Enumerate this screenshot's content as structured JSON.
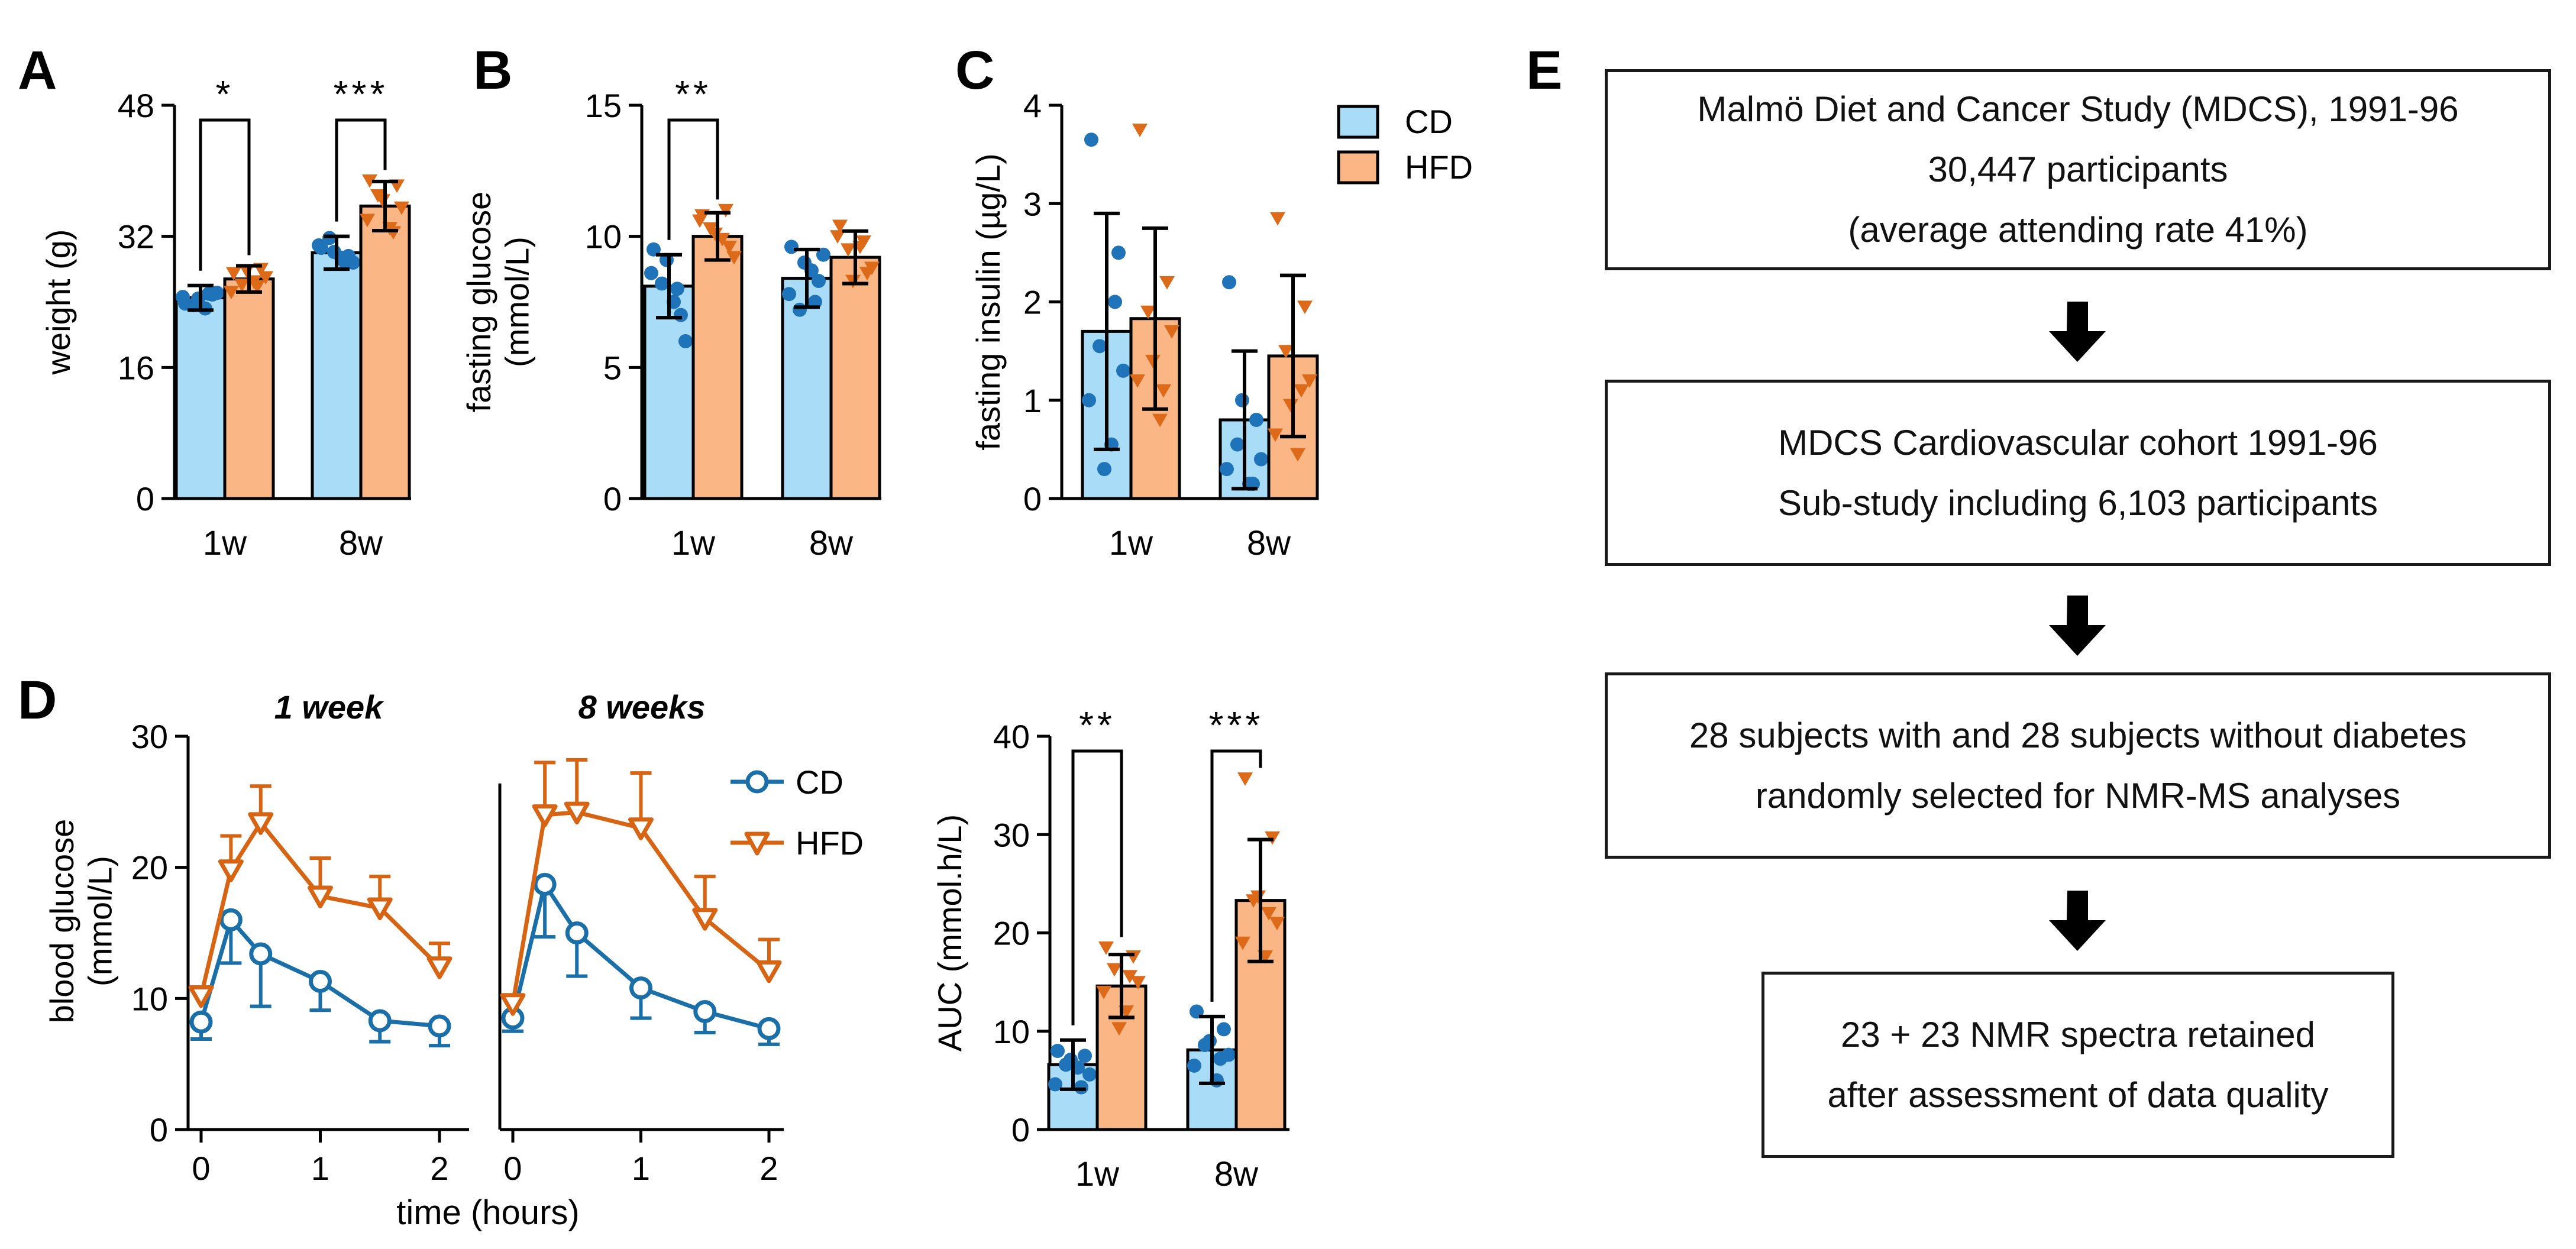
{
  "panel_labels": {
    "a": "A",
    "b": "B",
    "c": "C",
    "d": "D",
    "e": "E"
  },
  "colors": {
    "cd_fill": "#a9dcf7",
    "hfd_fill": "#fab684",
    "cd_line": "#1a6fa8",
    "hfd_line": "#d66412",
    "cd_point": "#1f73b8",
    "hfd_point": "#dd6a18",
    "axis": "#000000"
  },
  "legend": {
    "cd": "CD",
    "hfd": "HFD"
  },
  "chart_data": [
    {
      "id": "A",
      "type": "bar",
      "categories": [
        "1w",
        "8w"
      ],
      "ylabel": "weight (g)",
      "ylim": [
        0,
        48
      ],
      "yticks": [
        "0",
        "16",
        "32",
        "48"
      ],
      "series": [
        {
          "name": "CD",
          "values": [
            24.5,
            30.0
          ],
          "errors": [
            1.5,
            2.0
          ],
          "points": [
            [
              23.8,
              24.9,
              23.6,
              25.1,
              24.6,
              23.2,
              24.4,
              25.0
            ],
            [
              30.6,
              29.6,
              31.8,
              28.8,
              30.9,
              29.4,
              30.1,
              28.9
            ]
          ]
        },
        {
          "name": "HFD",
          "values": [
            26.8,
            35.7
          ],
          "errors": [
            1.6,
            3.0
          ],
          "points": [
            [
              27.5,
              28.0,
              26.1,
              27.0,
              25.2,
              26.5,
              27.8,
              25.9
            ],
            [
              38.8,
              38.2,
              37.0,
              35.5,
              34.0,
              33.0,
              36.4,
              32.5
            ]
          ]
        }
      ],
      "significance": [
        "*",
        "***"
      ]
    },
    {
      "id": "B",
      "type": "bar",
      "categories": [
        "1w",
        "8w"
      ],
      "ylabel": "fasting glucose (mmol/L)",
      "ylim": [
        0,
        15
      ],
      "yticks": [
        "0",
        "5",
        "10",
        "15"
      ],
      "series": [
        {
          "name": "CD",
          "values": [
            8.1,
            8.4
          ],
          "errors": [
            1.2,
            1.1
          ],
          "points": [
            [
              9.5,
              7.0,
              8.2,
              6.0,
              8.6,
              7.5,
              9.1,
              8.0
            ],
            [
              9.6,
              8.3,
              7.2,
              9.3,
              7.8,
              8.7,
              9.0,
              7.5
            ]
          ]
        },
        {
          "name": "HFD",
          "values": [
            10.0,
            9.2
          ],
          "errors": [
            0.9,
            1.0
          ],
          "points": [
            [
              10.8,
              9.6,
              10.3,
              9.2,
              10.6,
              9.9,
              10.1,
              11.0
            ],
            [
              10.4,
              8.6,
              9.5,
              8.8,
              10.0,
              9.6,
              8.3,
              9.8
            ]
          ]
        }
      ],
      "significance": [
        "**",
        ""
      ]
    },
    {
      "id": "C",
      "type": "bar",
      "categories": [
        "1w",
        "8w"
      ],
      "ylabel": "fasting insulin (µg/L)",
      "ylim": [
        0,
        4
      ],
      "yticks": [
        "0",
        "1",
        "2",
        "3",
        "4"
      ],
      "series": [
        {
          "name": "CD",
          "values": [
            1.7,
            0.8
          ],
          "errors": [
            1.2,
            0.7
          ],
          "points": [
            [
              3.65,
              2.5,
              1.55,
              1.3,
              1.0,
              0.55,
              0.3,
              2.0
            ],
            [
              2.2,
              0.8,
              0.55,
              0.4,
              0.3,
              0.15,
              1.0,
              0.15
            ]
          ]
        },
        {
          "name": "HFD",
          "values": [
            1.83,
            1.45
          ],
          "errors": [
            0.92,
            0.82
          ],
          "points": [
            [
              3.75,
              2.2,
              1.9,
              1.7,
              1.2,
              0.8,
              1.4,
              1.1
            ],
            [
              2.85,
              1.95,
              1.5,
              1.2,
              0.65,
              0.45,
              0.95,
              1.1
            ]
          ]
        }
      ],
      "significance": [
        "",
        ""
      ]
    },
    {
      "id": "D",
      "type": "line",
      "xlabel": "time (hours)",
      "ylabel": "blood glucose (mmol/L)",
      "ylim": [
        0,
        30
      ],
      "yticks": [
        "0",
        "10",
        "20",
        "30"
      ],
      "xticks": [
        "0",
        "1",
        "2"
      ],
      "subplots": [
        {
          "title": "1 week",
          "x": [
            0,
            0.25,
            0.5,
            1,
            1.5,
            2
          ],
          "series": [
            {
              "name": "CD",
              "values": [
                8.2,
                16.0,
                13.4,
                11.3,
                8.3,
                7.9
              ],
              "errors": [
                1.3,
                3.3,
                4.0,
                2.2,
                1.6,
                1.5
              ]
            },
            {
              "name": "HFD",
              "values": [
                10.2,
                19.8,
                23.4,
                17.8,
                16.9,
                12.4
              ],
              "errors": [
                0.5,
                2.6,
                2.8,
                2.9,
                2.4,
                1.8
              ]
            }
          ]
        },
        {
          "title": "8 weeks",
          "x": [
            0,
            0.25,
            0.5,
            1,
            1.5,
            2
          ],
          "series": [
            {
              "name": "CD",
              "values": [
                8.5,
                18.7,
                15.0,
                10.8,
                9.0,
                7.7
              ],
              "errors": [
                1.0,
                4.0,
                3.3,
                2.3,
                1.6,
                1.2
              ]
            },
            {
              "name": "HFD",
              "values": [
                9.6,
                24.0,
                24.2,
                23.0,
                16.1,
                12.1
              ],
              "errors": [
                0.5,
                4.0,
                4.0,
                4.2,
                3.2,
                2.4
              ]
            }
          ]
        }
      ]
    },
    {
      "id": "D-AUC",
      "type": "bar",
      "categories": [
        "1w",
        "8w"
      ],
      "ylabel": "AUC (mmol.h/L)",
      "ylim": [
        0,
        40
      ],
      "yticks": [
        "0",
        "10",
        "20",
        "30",
        "40"
      ],
      "series": [
        {
          "name": "CD",
          "values": [
            6.6,
            8.1
          ],
          "errors": [
            2.5,
            3.4
          ],
          "points": [
            [
              8.0,
              7.5,
              6.6,
              5.6,
              4.6,
              6.3,
              7.1,
              4.3
            ],
            [
              12.0,
              10.2,
              8.6,
              7.6,
              6.5,
              5.0,
              9.0,
              7.2
            ]
          ]
        },
        {
          "name": "HFD",
          "values": [
            14.6,
            23.3
          ],
          "errors": [
            3.2,
            6.2
          ],
          "points": [
            [
              18.5,
              17.6,
              16.3,
              15.0,
              14.0,
              12.0,
              10.3,
              15.6
            ],
            [
              35.7,
              29.7,
              23.3,
              21.0,
              19.0,
              17.6,
              23.7,
              22.0
            ]
          ]
        }
      ],
      "significance": [
        "**",
        "***"
      ]
    }
  ],
  "flowchart": {
    "boxes": [
      {
        "lines": [
          "Malmö Diet and Cancer Study (MDCS), 1991-96",
          "30,447 participants",
          "(average attending rate 41%)"
        ]
      },
      {
        "lines": [
          "MDCS Cardiovascular cohort 1991-96",
          "Sub-study including 6,103 participants"
        ]
      },
      {
        "lines": [
          "28 subjects with and 28 subjects without diabetes",
          "randomly selected for NMR-MS analyses"
        ]
      },
      {
        "lines": [
          "23 + 23 NMR spectra retained",
          "after assessment of data quality"
        ]
      }
    ]
  }
}
